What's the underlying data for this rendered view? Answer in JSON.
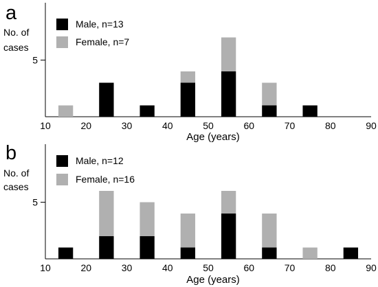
{
  "chart_data": [
    {
      "panel_letter": "a",
      "type": "bar",
      "stacked": true,
      "ylabel_lines": [
        "No. of",
        "cases"
      ],
      "xlabel": "Age (years)",
      "xticks": [
        10,
        20,
        30,
        40,
        50,
        60,
        70,
        80,
        90
      ],
      "xlim": [
        10,
        90
      ],
      "yticks": [
        5
      ],
      "ylim": [
        0,
        10
      ],
      "categories": [
        "10-19",
        "20-29",
        "30-39",
        "40-49",
        "50-59",
        "60-69",
        "70-79",
        "80-89"
      ],
      "series": [
        {
          "name": "Male, n=13",
          "color": "#000000",
          "values": [
            0,
            3,
            1,
            3,
            4,
            1,
            1,
            0
          ]
        },
        {
          "name": "Female, n=7",
          "color": "#b0b0b0",
          "values": [
            1,
            0,
            0,
            1,
            3,
            2,
            0,
            0
          ]
        }
      ],
      "legend_position": "top-left",
      "grid": false
    },
    {
      "panel_letter": "b",
      "type": "bar",
      "stacked": true,
      "ylabel_lines": [
        "No. of",
        "cases"
      ],
      "xlabel": "Age (years)",
      "xticks": [
        10,
        20,
        30,
        40,
        50,
        60,
        70,
        80,
        90
      ],
      "xlim": [
        10,
        90
      ],
      "yticks": [
        5
      ],
      "ylim": [
        0,
        10
      ],
      "categories": [
        "10-19",
        "20-29",
        "30-39",
        "40-49",
        "50-59",
        "60-69",
        "70-79",
        "80-89"
      ],
      "series": [
        {
          "name": "Male, n=12",
          "color": "#000000",
          "values": [
            1,
            2,
            2,
            1,
            4,
            1,
            0,
            1
          ]
        },
        {
          "name": "Female, n=16",
          "color": "#b0b0b0",
          "values": [
            0,
            4,
            3,
            3,
            2,
            3,
            1,
            0
          ]
        }
      ],
      "legend_position": "top-left",
      "grid": false
    }
  ]
}
